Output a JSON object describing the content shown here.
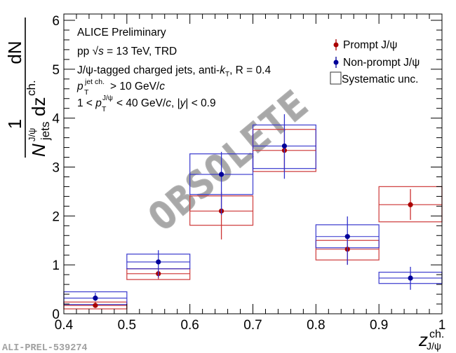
{
  "chart_data": {
    "type": "scatter",
    "title": "",
    "xlabel": "z^{ch.}_{J/ψ}",
    "xlabel_main": "z",
    "xlabel_sup": "ch.",
    "xlabel_sub": "J/ψ",
    "ylabel": "1 / (N^{J/ψ}_{jets} dN/dz^{ch.})",
    "ylabel_parts": {
      "num": "1",
      "dN": "dN",
      "N": "N",
      "N_sup": "J/ψ",
      "N_sub": "jets",
      "dz": "dz",
      "dz_sup": "ch."
    },
    "xlim": [
      0.4,
      1.0
    ],
    "ylim": [
      0,
      6.05
    ],
    "x_ticks": [
      0.4,
      0.5,
      0.6,
      0.7,
      0.8,
      0.9,
      1.0
    ],
    "x_tick_labels": [
      "0.4",
      "0.5",
      "0.6",
      "0.7",
      "0.8",
      "0.9",
      "1"
    ],
    "y_ticks": [
      0,
      1,
      2,
      3,
      4,
      5,
      6
    ],
    "y_tick_labels": [
      "0",
      "1",
      "2",
      "3",
      "4",
      "5",
      "6"
    ],
    "grid": false,
    "legend_position": "top-right",
    "bin_edges": [
      0.4,
      0.5,
      0.6,
      0.7,
      0.8,
      0.9,
      1.0
    ],
    "series": [
      {
        "name": "Prompt J/ψ",
        "color": "#aa0000",
        "box_color": "#cc3333",
        "x": [
          0.45,
          0.55,
          0.65,
          0.75,
          0.85,
          0.95
        ],
        "y": [
          0.17,
          0.82,
          2.1,
          3.34,
          1.32,
          2.23
        ],
        "stat_low": [
          0.15,
          0.71,
          1.52,
          2.91,
          1.01,
          1.92
        ],
        "stat_high": [
          0.25,
          0.94,
          2.49,
          3.77,
          1.6,
          2.55
        ],
        "sys_low": [
          0.1,
          0.7,
          1.81,
          2.91,
          1.1,
          1.88
        ],
        "sys_high": [
          0.24,
          0.92,
          2.41,
          3.77,
          1.5,
          2.6
        ]
      },
      {
        "name": "Non-prompt J/ψ",
        "color": "#000099",
        "box_color": "#3333cc",
        "x": [
          0.45,
          0.55,
          0.65,
          0.75,
          0.85,
          0.95
        ],
        "y": [
          0.32,
          1.06,
          2.85,
          3.43,
          1.58,
          0.73
        ],
        "stat_low": [
          0.26,
          0.74,
          2.02,
          2.76,
          1.0,
          0.49
        ],
        "stat_high": [
          0.43,
          1.3,
          3.31,
          4.08,
          1.99,
          0.96
        ],
        "sys_low": [
          0.19,
          0.92,
          2.44,
          2.97,
          1.35,
          0.62
        ],
        "sys_high": [
          0.45,
          1.22,
          3.27,
          3.86,
          1.82,
          0.85
        ]
      }
    ],
    "legend": [
      {
        "label": "Prompt J/ψ",
        "marker": "point-errorbar",
        "color": "#aa0000"
      },
      {
        "label": "Non-prompt J/ψ",
        "marker": "point-errorbar",
        "color": "#000099"
      },
      {
        "label": "Systematic unc.",
        "marker": "open-box",
        "color": "#000000"
      }
    ],
    "annotations": {
      "line1": "ALICE Preliminary",
      "line2_pre": "pp ",
      "line2_sqrt": "√",
      "line2_s": "s",
      "line2_post": " = 13 TeV, TRD",
      "line3_pre": "J/ψ-tagged charged jets, anti-",
      "line3_k": "k",
      "line3_kT": "T",
      "line3_post": ", R = 0.4",
      "line4_p": "p",
      "line4_sub": "T",
      "line4_sup": "jet ch.",
      "line4_post": " > 10 GeV/",
      "line4_c": "c",
      "line5_pre": "1 < ",
      "line5_p": "p",
      "line5_sub": "T",
      "line5_sup": "J/ψ",
      "line5_mid": " < 40 GeV/",
      "line5_c": "c",
      "line5_post1": ", |",
      "line5_y": "y",
      "line5_post2": "| < 0.9"
    },
    "watermark": "OBSOLETE",
    "figure_id": "ALI-PREL-539274"
  }
}
